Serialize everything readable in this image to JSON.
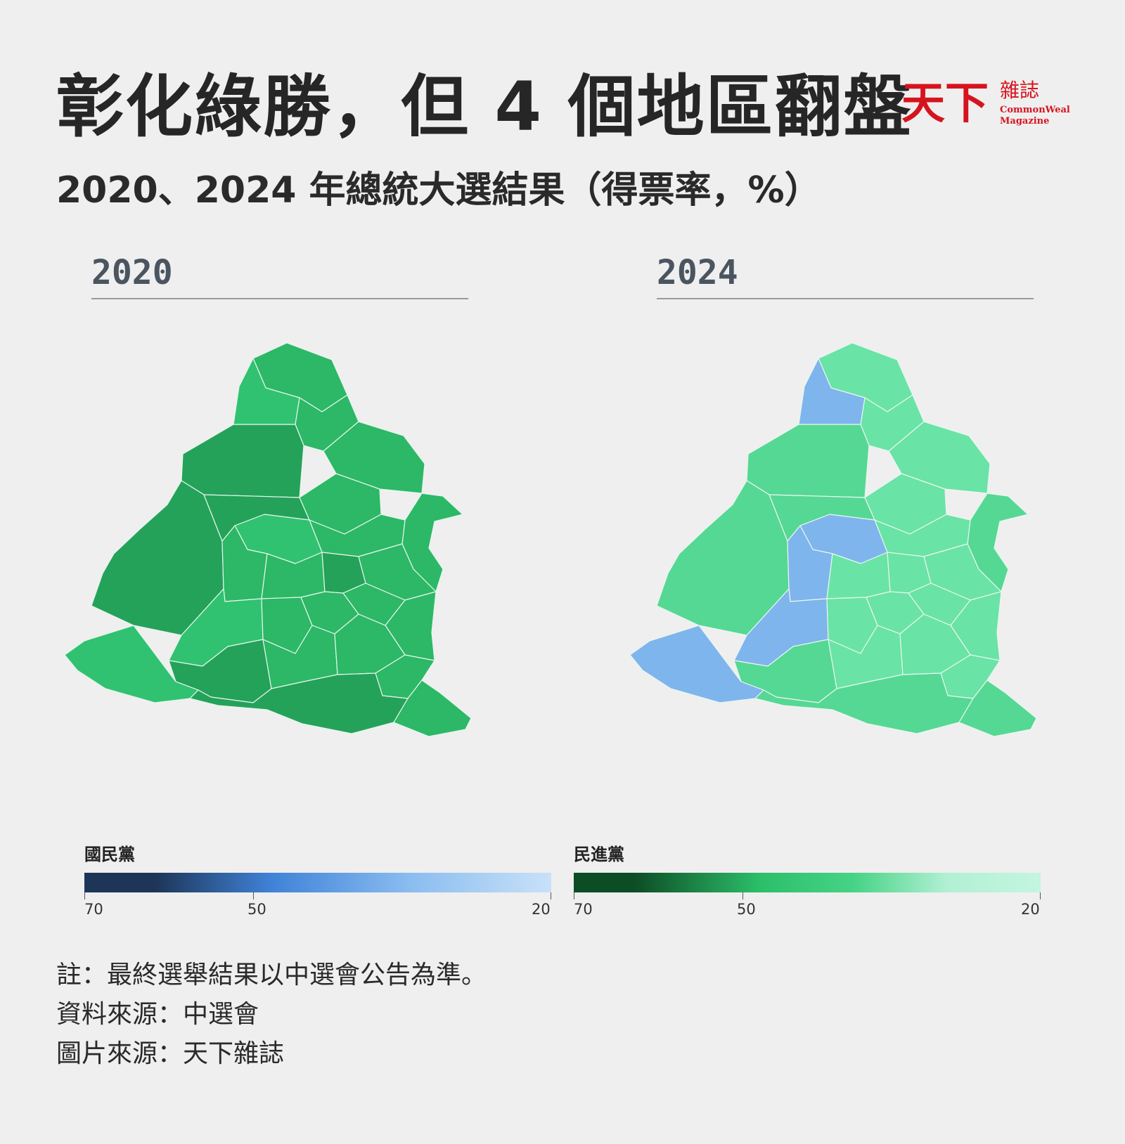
{
  "title": "彰化綠勝，但 4 個地區翻盤",
  "subtitle": "2020、2024 年總統大選結果（得票率，%）",
  "logo": {
    "main": "天下",
    "side": "雜誌",
    "en_line1": "CommonWealth",
    "en_line2": "Magazine",
    "color": "#d6141e"
  },
  "maps": [
    {
      "year": "2020",
      "stroke": "#e7f5ec"
    },
    {
      "year": "2024",
      "stroke": "#eaf6ef"
    }
  ],
  "legend": {
    "kmt": {
      "title": "國民黨",
      "ticks": [
        "70",
        "50",
        "20"
      ],
      "colors": [
        "#1d3557",
        "#3f82d8",
        "#c9e1f8"
      ]
    },
    "dpp": {
      "title": "民進黨",
      "ticks": [
        "70",
        "50",
        "20"
      ],
      "colors": [
        "#0d4d25",
        "#2cbf6a",
        "#c4f5e0"
      ]
    }
  },
  "notes": {
    "note": "註：最終選舉結果以中選會公告為準。",
    "source": "資料來源：中選會",
    "image_source": "圖片來源：天下雜誌"
  },
  "palette": {
    "dark_green": "#24a25a",
    "green": "#2cb866",
    "mid_green": "#30c271",
    "light_green": "#55d893",
    "pale_green": "#6ae3a6",
    "blue": "#7eb5ec"
  }
}
